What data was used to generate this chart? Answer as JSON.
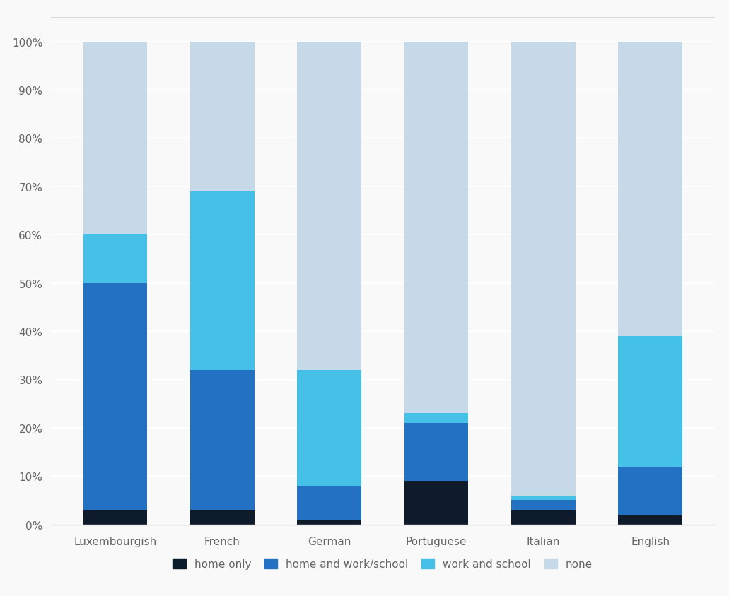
{
  "categories": [
    "Luxembourgish",
    "French",
    "German",
    "Portuguese",
    "Italian",
    "English"
  ],
  "series": {
    "home only": [
      3,
      3,
      1,
      9,
      3,
      2
    ],
    "home and work/school": [
      47,
      29,
      7,
      12,
      2,
      10
    ],
    "work and school": [
      10,
      37,
      24,
      2,
      1,
      27
    ],
    "none": [
      40,
      31,
      68,
      77,
      94,
      61
    ]
  },
  "colors": {
    "home only": "#0d1b2a",
    "home and work/school": "#2271c3",
    "work and school": "#45c1e8",
    "none": "#c5d9e8"
  },
  "yticks": [
    0,
    10,
    20,
    30,
    40,
    50,
    60,
    70,
    80,
    90,
    100
  ],
  "ytick_labels": [
    "0%",
    "10%",
    "20%",
    "30%",
    "40%",
    "50%",
    "60%",
    "70%",
    "80%",
    "90%",
    "100%"
  ],
  "background_color": "#f9f9f9",
  "grid_color": "#ffffff",
  "bar_width": 0.6,
  "legend_order": [
    "home only",
    "home and work/school",
    "work and school",
    "none"
  ]
}
